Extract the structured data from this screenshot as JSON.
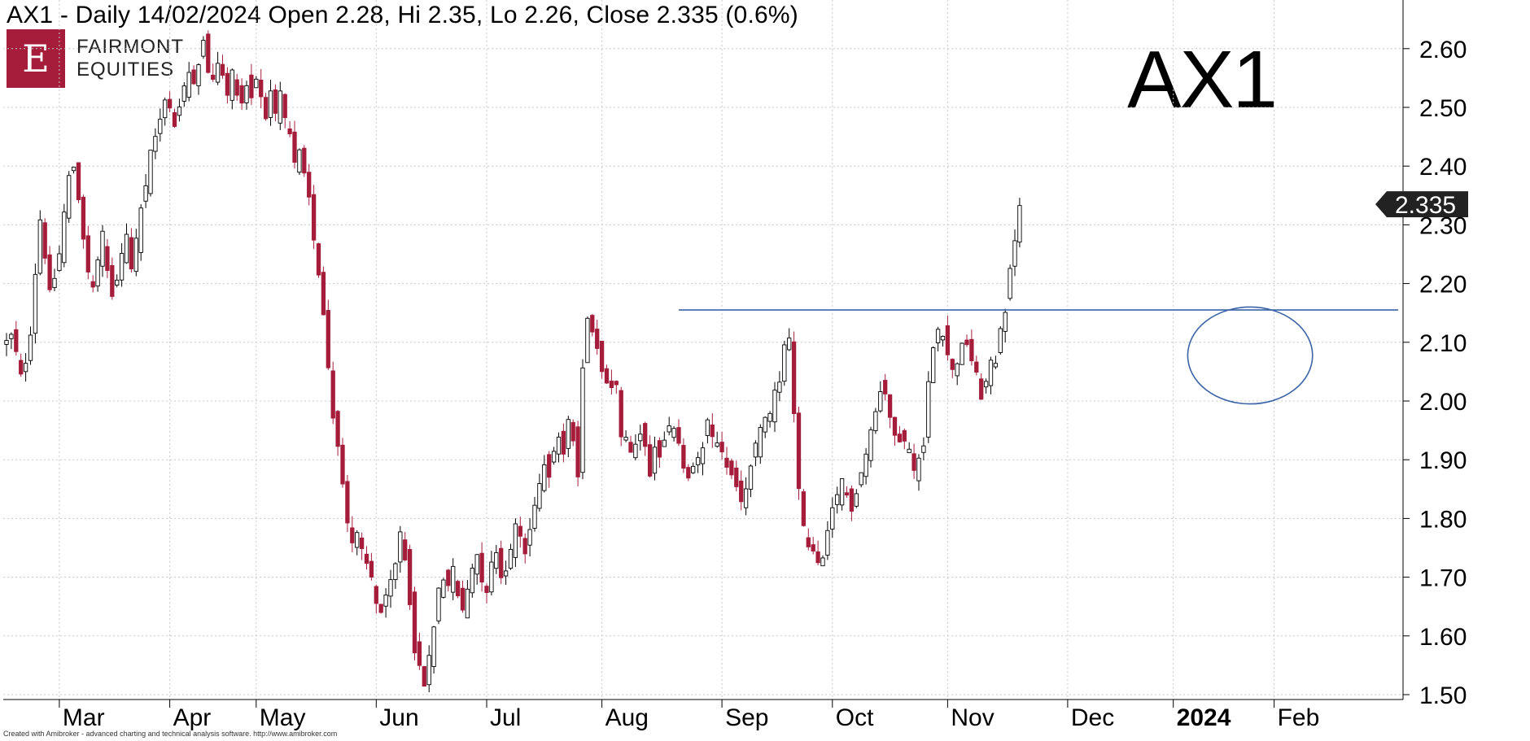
{
  "title": "AX1 - Daily 14/02/2024 Open 2.28, Hi 2.35, Lo 2.26, Close 2.335 (0.6%)",
  "logo": {
    "letter": "E",
    "line1": "FAIRMONT",
    "line2": "EQUITIES"
  },
  "watermark": "AX1",
  "footer": "Created with Amibroker - advanced charting and technical analysis software. http://www.amibroker.com",
  "colors": {
    "up_fill": "#ffffff",
    "up_stroke": "#000000",
    "down": "#a51d3b",
    "wick": "#000000",
    "grid": "#c8c8c8",
    "line": "#3a63a8",
    "badge": "#222222"
  },
  "chart_data": {
    "type": "candlestick",
    "ticker": "AX1",
    "ylim": [
      1.48,
      2.63
    ],
    "yticks": [
      "1.50",
      "1.60",
      "1.70",
      "1.80",
      "1.90",
      "2.00",
      "2.10",
      "2.20",
      "2.30",
      "2.40",
      "2.50",
      "2.60"
    ],
    "xticks": [
      {
        "label": "Mar",
        "index": 11,
        "bold": false
      },
      {
        "label": "Apr",
        "index": 34,
        "bold": false
      },
      {
        "label": "May",
        "index": 52,
        "bold": false
      },
      {
        "label": "Jun",
        "index": 77,
        "bold": false
      },
      {
        "label": "Jul",
        "index": 100,
        "bold": false
      },
      {
        "label": "Aug",
        "index": 124,
        "bold": false
      },
      {
        "label": "Sep",
        "index": 149,
        "bold": false
      },
      {
        "label": "Oct",
        "index": 172,
        "bold": false
      },
      {
        "label": "Nov",
        "index": 196,
        "bold": false
      },
      {
        "label": "Dec",
        "index": 221,
        "bold": false
      },
      {
        "label": "2024",
        "index": 243,
        "bold": true
      },
      {
        "label": "Feb",
        "index": 264,
        "bold": false
      }
    ],
    "last_price_label": "2.335",
    "resistance_level": 2.155,
    "resistance_from_index": 140,
    "highlight_ellipse": {
      "from_index": 246,
      "to_index": 272,
      "low": 1.995,
      "high": 2.16
    },
    "anchors": [
      [
        0,
        2.1
      ],
      [
        1,
        2.11
      ],
      [
        2,
        2.08
      ],
      [
        3,
        2.04
      ],
      [
        4,
        2.07
      ],
      [
        5,
        2.12
      ],
      [
        6,
        2.22
      ],
      [
        7,
        2.31
      ],
      [
        8,
        2.25
      ],
      [
        9,
        2.18
      ],
      [
        10,
        2.21
      ],
      [
        11,
        2.25
      ],
      [
        12,
        2.32
      ],
      [
        13,
        2.38
      ],
      [
        14,
        2.4
      ],
      [
        15,
        2.35
      ],
      [
        16,
        2.28
      ],
      [
        17,
        2.22
      ],
      [
        18,
        2.19
      ],
      [
        19,
        2.24
      ],
      [
        20,
        2.28
      ],
      [
        21,
        2.22
      ],
      [
        22,
        2.18
      ],
      [
        23,
        2.2
      ],
      [
        24,
        2.25
      ],
      [
        25,
        2.28
      ],
      [
        26,
        2.23
      ],
      [
        27,
        2.27
      ],
      [
        28,
        2.33
      ],
      [
        29,
        2.36
      ],
      [
        30,
        2.42
      ],
      [
        31,
        2.45
      ],
      [
        32,
        2.48
      ],
      [
        33,
        2.52
      ],
      [
        34,
        2.5
      ],
      [
        35,
        2.47
      ],
      [
        36,
        2.5
      ],
      [
        37,
        2.53
      ],
      [
        38,
        2.56
      ],
      [
        39,
        2.55
      ],
      [
        40,
        2.58
      ],
      [
        41,
        2.61
      ],
      [
        42,
        2.56
      ],
      [
        43,
        2.54
      ],
      [
        44,
        2.58
      ],
      [
        45,
        2.55
      ],
      [
        46,
        2.52
      ],
      [
        47,
        2.56
      ],
      [
        48,
        2.53
      ],
      [
        49,
        2.51
      ],
      [
        50,
        2.54
      ],
      [
        51,
        2.52
      ],
      [
        52,
        2.55
      ],
      [
        53,
        2.52
      ],
      [
        54,
        2.49
      ],
      [
        55,
        2.52
      ],
      [
        56,
        2.48
      ],
      [
        57,
        2.52
      ],
      [
        58,
        2.48
      ],
      [
        59,
        2.45
      ],
      [
        60,
        2.4
      ],
      [
        61,
        2.42
      ],
      [
        62,
        2.38
      ],
      [
        63,
        2.34
      ],
      [
        64,
        2.28
      ],
      [
        65,
        2.22
      ],
      [
        66,
        2.15
      ],
      [
        67,
        2.06
      ],
      [
        68,
        1.98
      ],
      [
        69,
        1.92
      ],
      [
        70,
        1.86
      ],
      [
        71,
        1.8
      ],
      [
        72,
        1.76
      ],
      [
        73,
        1.77
      ],
      [
        74,
        1.74
      ],
      [
        75,
        1.72
      ],
      [
        76,
        1.7
      ],
      [
        77,
        1.66
      ],
      [
        78,
        1.64
      ],
      [
        79,
        1.66
      ],
      [
        80,
        1.69
      ],
      [
        81,
        1.72
      ],
      [
        82,
        1.78
      ],
      [
        83,
        1.73
      ],
      [
        84,
        1.66
      ],
      [
        85,
        1.58
      ],
      [
        86,
        1.54
      ],
      [
        87,
        1.52
      ],
      [
        88,
        1.56
      ],
      [
        89,
        1.62
      ],
      [
        90,
        1.68
      ],
      [
        91,
        1.7
      ],
      [
        92,
        1.69
      ],
      [
        93,
        1.71
      ],
      [
        94,
        1.67
      ],
      [
        95,
        1.64
      ],
      [
        96,
        1.68
      ],
      [
        97,
        1.72
      ],
      [
        98,
        1.74
      ],
      [
        99,
        1.7
      ],
      [
        100,
        1.68
      ],
      [
        101,
        1.72
      ],
      [
        102,
        1.75
      ],
      [
        103,
        1.7
      ],
      [
        104,
        1.72
      ],
      [
        105,
        1.74
      ],
      [
        106,
        1.79
      ],
      [
        107,
        1.77
      ],
      [
        108,
        1.74
      ],
      [
        109,
        1.78
      ],
      [
        110,
        1.83
      ],
      [
        111,
        1.86
      ],
      [
        112,
        1.9
      ],
      [
        113,
        1.88
      ],
      [
        114,
        1.92
      ],
      [
        115,
        1.94
      ],
      [
        116,
        1.91
      ],
      [
        117,
        1.96
      ],
      [
        118,
        1.94
      ],
      [
        119,
        1.88
      ],
      [
        120,
        2.05
      ],
      [
        121,
        2.15
      ],
      [
        122,
        2.12
      ],
      [
        123,
        2.09
      ],
      [
        124,
        2.06
      ],
      [
        125,
        2.04
      ],
      [
        126,
        2.03
      ],
      [
        127,
        2.02
      ],
      [
        128,
        1.94
      ],
      [
        129,
        1.93
      ],
      [
        130,
        1.91
      ],
      [
        131,
        1.93
      ],
      [
        132,
        1.95
      ],
      [
        133,
        1.92
      ],
      [
        134,
        1.88
      ],
      [
        135,
        1.92
      ],
      [
        136,
        1.91
      ],
      [
        137,
        1.93
      ],
      [
        138,
        1.95
      ],
      [
        139,
        1.96
      ],
      [
        140,
        1.92
      ],
      [
        141,
        1.89
      ],
      [
        142,
        1.87
      ],
      [
        143,
        1.88
      ],
      [
        144,
        1.9
      ],
      [
        145,
        1.93
      ],
      [
        146,
        1.96
      ],
      [
        147,
        1.94
      ],
      [
        148,
        1.92
      ],
      [
        149,
        1.91
      ],
      [
        150,
        1.89
      ],
      [
        151,
        1.87
      ],
      [
        152,
        1.85
      ],
      [
        153,
        1.83
      ],
      [
        154,
        1.85
      ],
      [
        155,
        1.89
      ],
      [
        156,
        1.92
      ],
      [
        157,
        1.95
      ],
      [
        158,
        1.97
      ],
      [
        159,
        1.98
      ],
      [
        160,
        2.01
      ],
      [
        161,
        2.04
      ],
      [
        162,
        2.09
      ],
      [
        163,
        2.11
      ],
      [
        164,
        1.97
      ],
      [
        165,
        1.85
      ],
      [
        166,
        1.78
      ],
      [
        167,
        1.76
      ],
      [
        168,
        1.74
      ],
      [
        169,
        1.72
      ],
      [
        170,
        1.73
      ],
      [
        171,
        1.77
      ],
      [
        172,
        1.81
      ],
      [
        173,
        1.84
      ],
      [
        174,
        1.86
      ],
      [
        175,
        1.84
      ],
      [
        176,
        1.82
      ],
      [
        177,
        1.85
      ],
      [
        178,
        1.88
      ],
      [
        179,
        1.91
      ],
      [
        180,
        1.95
      ],
      [
        181,
        1.98
      ],
      [
        182,
        2.02
      ],
      [
        183,
        2.01
      ],
      [
        184,
        1.98
      ],
      [
        185,
        1.95
      ],
      [
        186,
        1.94
      ],
      [
        187,
        1.93
      ],
      [
        188,
        1.91
      ],
      [
        189,
        1.88
      ],
      [
        190,
        1.91
      ],
      [
        191,
        1.93
      ],
      [
        192,
        2.03
      ],
      [
        193,
        2.1
      ],
      [
        194,
        2.13
      ],
      [
        195,
        2.12
      ],
      [
        196,
        2.08
      ],
      [
        197,
        2.05
      ],
      [
        198,
        2.07
      ],
      [
        199,
        2.09
      ],
      [
        200,
        2.1
      ],
      [
        201,
        2.07
      ],
      [
        202,
        2.04
      ],
      [
        203,
        2.01
      ],
      [
        204,
        2.03
      ],
      [
        205,
        2.06
      ],
      [
        206,
        2.07
      ],
      [
        207,
        2.12
      ],
      [
        208,
        2.16
      ],
      [
        209,
        2.22
      ],
      [
        210,
        2.28
      ],
      [
        211,
        2.33
      ]
    ]
  }
}
